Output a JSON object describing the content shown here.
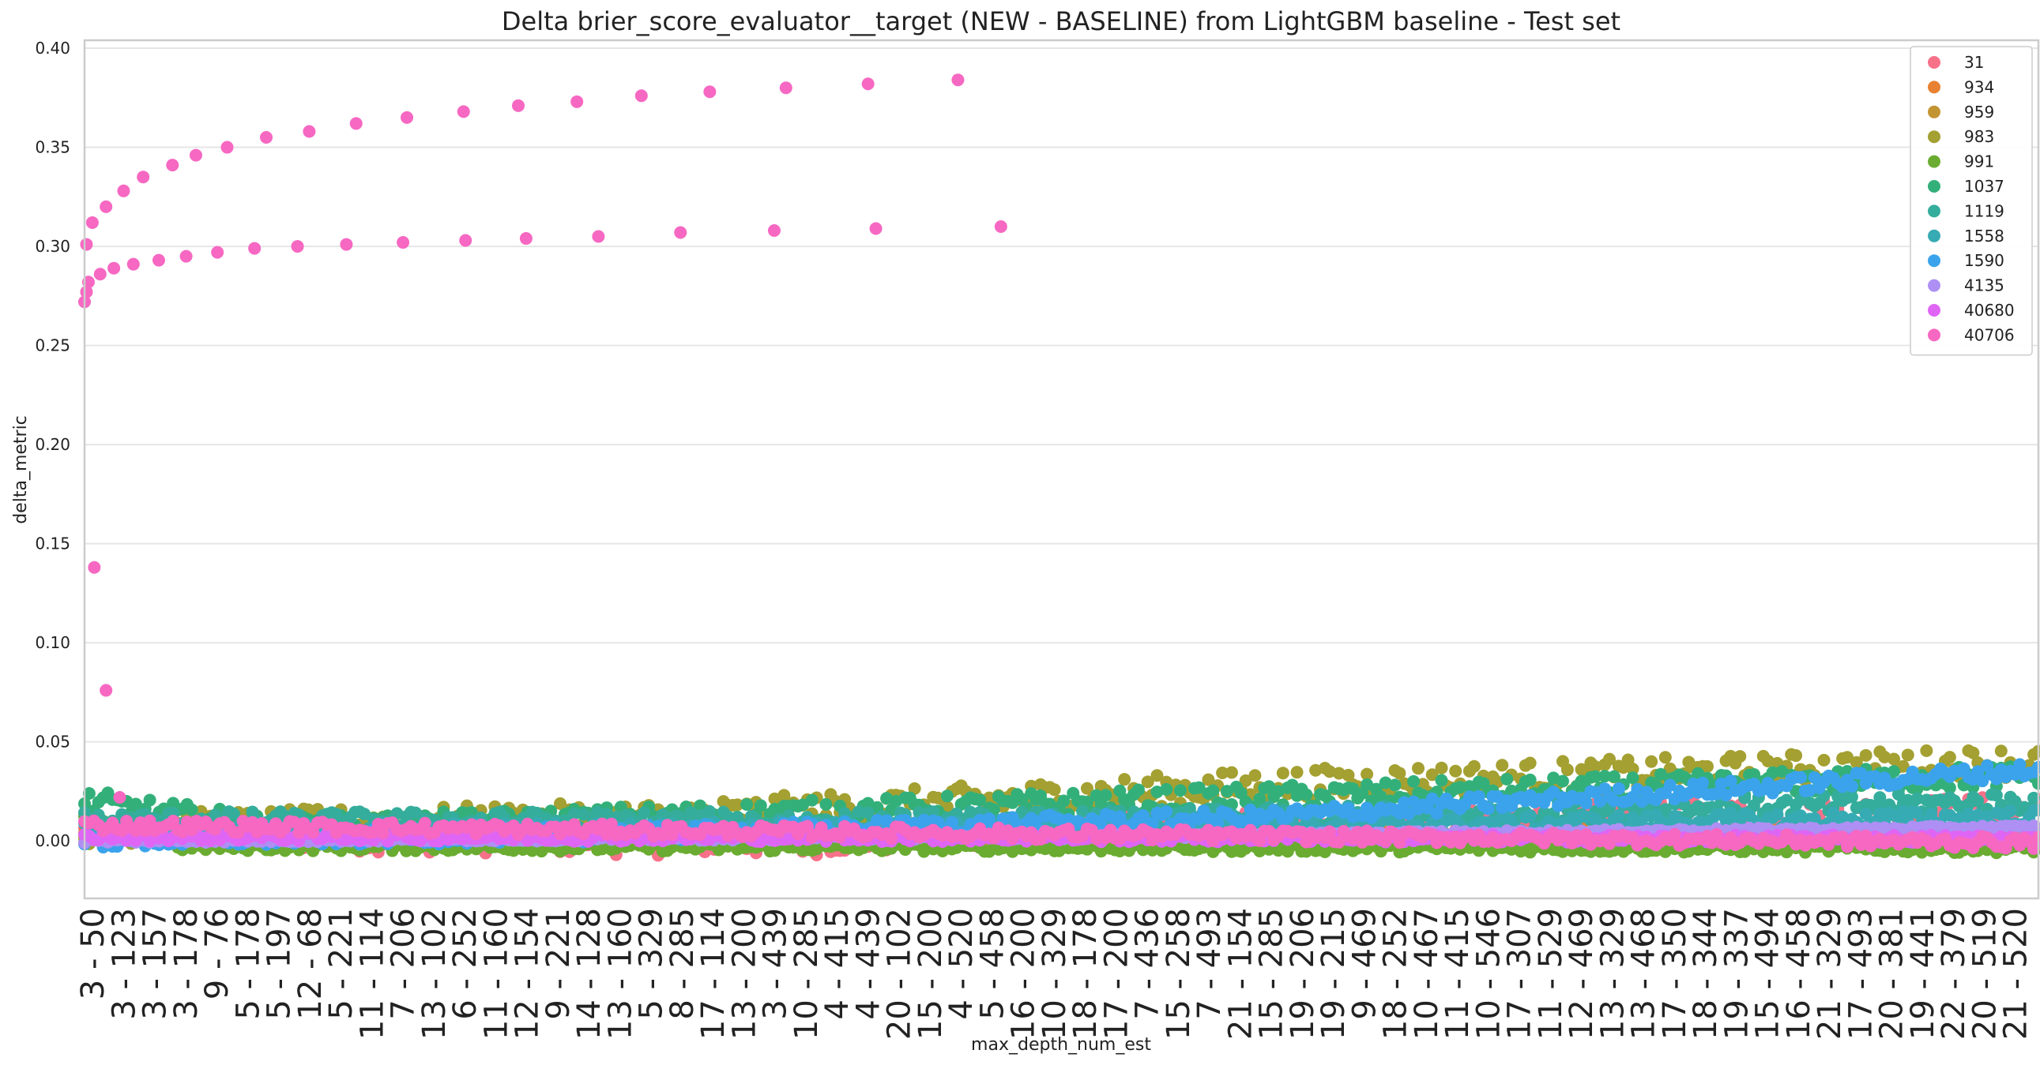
{
  "chart_data": {
    "type": "scatter",
    "title": "Delta brier_score_evaluator__target (NEW - BASELINE) from LightGBM baseline - Test set",
    "xlabel": "max_depth_num_est",
    "ylabel": "delta_metric",
    "ylim": [
      -0.029,
      0.404
    ],
    "yticks": [
      "0.00",
      "0.05",
      "0.10",
      "0.15",
      "0.20",
      "0.25",
      "0.30",
      "0.35",
      "0.40"
    ],
    "xticks": [
      "3 - 50",
      "3 - 123",
      "3 - 157",
      "3 - 178",
      "9 - 76",
      "5 - 178",
      "5 - 197",
      "12 - 68",
      "5 - 221",
      "11 - 114",
      "7 - 206",
      "13 - 102",
      "6 - 252",
      "11 - 160",
      "12 - 154",
      "9 - 221",
      "14 - 128",
      "13 - 160",
      "5 - 329",
      "8 - 285",
      "17 - 114",
      "13 - 200",
      "3 - 439",
      "10 - 285",
      "4 - 415",
      "4 - 439",
      "20 - 102",
      "15 - 200",
      "4 - 520",
      "5 - 458",
      "16 - 200",
      "10 - 329",
      "18 - 178",
      "17 - 200",
      "7 - 436",
      "15 - 258",
      "7 - 493",
      "21 - 154",
      "15 - 285",
      "19 - 206",
      "19 - 215",
      "9 - 469",
      "18 - 252",
      "10 - 467",
      "11 - 415",
      "10 - 546",
      "17 - 307",
      "11 - 529",
      "12 - 469",
      "13 - 329",
      "13 - 468",
      "17 - 350",
      "18 - 344",
      "19 - 337",
      "15 - 494",
      "16 - 458",
      "21 - 329",
      "17 - 493",
      "20 - 381",
      "19 - 441",
      "22 - 379",
      "20 - 519",
      "21 - 520"
    ],
    "grid": true,
    "legend_position": "top-right",
    "series": [
      {
        "name": "31",
        "color": "#f77189",
        "trend": [
          [
            0,
            0.004
          ],
          [
            0.35,
            0.0
          ],
          [
            0.6,
            0.008
          ],
          [
            1.0,
            0.015
          ]
        ],
        "jitter": 0.008
      },
      {
        "name": "934",
        "color": "#e88131",
        "trend": [
          [
            0,
            0.002
          ],
          [
            0.5,
            0.003
          ],
          [
            1.0,
            0.004
          ]
        ],
        "jitter": 0.004
      },
      {
        "name": "959",
        "color": "#c39532",
        "trend": [
          [
            0,
            0.001
          ],
          [
            1.0,
            0.002
          ]
        ],
        "jitter": 0.002
      },
      {
        "name": "983",
        "color": "#a4a031",
        "trend": [
          [
            0,
            0.006
          ],
          [
            0.3,
            0.012
          ],
          [
            0.6,
            0.028
          ],
          [
            1.0,
            0.04
          ]
        ],
        "jitter": 0.008
      },
      {
        "name": "991",
        "color": "#6aac31",
        "trend": [
          [
            0,
            0.012
          ],
          [
            0.05,
            -0.003
          ],
          [
            1.0,
            -0.004
          ]
        ],
        "jitter": 0.002
      },
      {
        "name": "1037",
        "color": "#33b07a",
        "trend": [
          [
            0,
            0.02
          ],
          [
            0.1,
            0.006
          ],
          [
            0.6,
            0.022
          ],
          [
            1.0,
            0.033
          ]
        ],
        "jitter": 0.006
      },
      {
        "name": "1119",
        "color": "#35ad9c",
        "trend": [
          [
            0,
            0.01
          ],
          [
            0.5,
            0.01
          ],
          [
            1.0,
            0.02
          ]
        ],
        "jitter": 0.005
      },
      {
        "name": "1558",
        "color": "#37abb4",
        "trend": [
          [
            0,
            0.005
          ],
          [
            0.5,
            0.006
          ],
          [
            1.0,
            0.012
          ]
        ],
        "jitter": 0.004
      },
      {
        "name": "1590",
        "color": "#3ba3ec",
        "trend": [
          [
            0,
            0.0
          ],
          [
            0.3,
            0.004
          ],
          [
            0.6,
            0.012
          ],
          [
            1.0,
            0.036
          ]
        ],
        "jitter": 0.004
      },
      {
        "name": "4135",
        "color": "#ae8ff4",
        "trend": [
          [
            0,
            0.0
          ],
          [
            0.5,
            0.002
          ],
          [
            1.0,
            0.007
          ]
        ],
        "jitter": 0.001
      },
      {
        "name": "40680",
        "color": "#df65f4",
        "trend": [
          [
            0,
            0.002
          ],
          [
            1.0,
            0.001
          ]
        ],
        "jitter": 0.002
      },
      {
        "name": "40706",
        "color": "#f668c2",
        "trend": [
          [
            0,
            0.008
          ],
          [
            1.0,
            -0.001
          ]
        ],
        "jitter": 0.003,
        "outliers": [
          [
            0.0,
            0.272
          ],
          [
            0.001,
            0.277
          ],
          [
            0.002,
            0.282
          ],
          [
            0.008,
            0.286
          ],
          [
            0.015,
            0.289
          ],
          [
            0.025,
            0.291
          ],
          [
            0.038,
            0.293
          ],
          [
            0.052,
            0.295
          ],
          [
            0.068,
            0.297
          ],
          [
            0.087,
            0.299
          ],
          [
            0.109,
            0.3
          ],
          [
            0.134,
            0.301
          ],
          [
            0.163,
            0.302
          ],
          [
            0.195,
            0.303
          ],
          [
            0.226,
            0.304
          ],
          [
            0.263,
            0.305
          ],
          [
            0.305,
            0.307
          ],
          [
            0.353,
            0.308
          ],
          [
            0.405,
            0.309
          ],
          [
            0.469,
            0.31
          ],
          [
            0.001,
            0.301
          ],
          [
            0.004,
            0.312
          ],
          [
            0.011,
            0.32
          ],
          [
            0.02,
            0.328
          ],
          [
            0.03,
            0.335
          ],
          [
            0.045,
            0.341
          ],
          [
            0.057,
            0.346
          ],
          [
            0.073,
            0.35
          ],
          [
            0.093,
            0.355
          ],
          [
            0.115,
            0.358
          ],
          [
            0.139,
            0.362
          ],
          [
            0.165,
            0.365
          ],
          [
            0.194,
            0.368
          ],
          [
            0.222,
            0.371
          ],
          [
            0.252,
            0.373
          ],
          [
            0.285,
            0.376
          ],
          [
            0.32,
            0.378
          ],
          [
            0.359,
            0.38
          ],
          [
            0.401,
            0.382
          ],
          [
            0.447,
            0.384
          ],
          [
            0.005,
            0.138
          ],
          [
            0.011,
            0.076
          ],
          [
            0.018,
            0.022
          ]
        ]
      }
    ]
  }
}
